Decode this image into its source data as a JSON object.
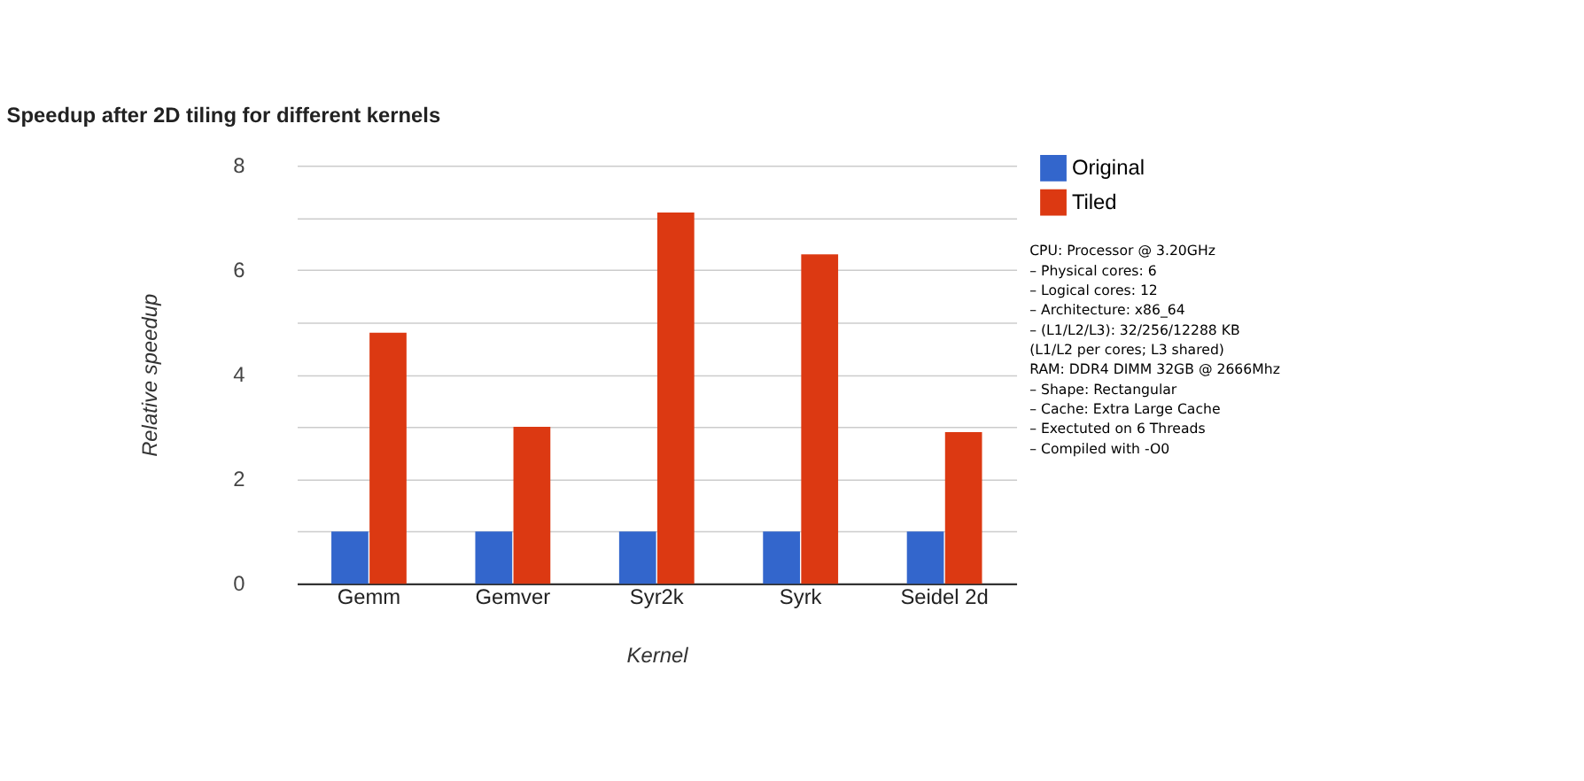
{
  "chart_data": {
    "type": "bar",
    "title": "Speedup after 2D tiling for different kernels",
    "xlabel": "Kernel",
    "ylabel": "Relative speedup",
    "categories": [
      "Gemm",
      "Gemver",
      "Syr2k",
      "Syrk",
      "Seidel 2d"
    ],
    "series": [
      {
        "name": "Original",
        "color": "#3366cc",
        "values": [
          1,
          1,
          1,
          1,
          1
        ]
      },
      {
        "name": "Tiled",
        "color": "#dc3912",
        "values": [
          4.8,
          3.0,
          7.1,
          6.3,
          2.9
        ]
      }
    ],
    "ylim": [
      0,
      8
    ],
    "yticks": [
      0,
      {
        "value": 1,
        "label": null
      },
      2,
      {
        "value": 3,
        "label": null
      },
      4,
      {
        "value": 5,
        "label": null
      },
      6,
      {
        "value": 7,
        "label": null
      },
      8
    ],
    "grid": "y",
    "legend": "top right",
    "annotations": [
      "CPU: Processor @ 3.20GHz",
      "– Physical cores: 6",
      "– Logical cores: 12",
      "– Architecture: x86_64",
      "– (L1/L2/L3): 32/256/12288 KB",
      "(L1/L2 per cores; L3 shared)",
      "RAM: DDR4 DIMM 32GB @ 2666Mhz",
      "–  Shape: Rectangular",
      "–  Cache: Extra Large Cache",
      "–  Exectuted on 6 Threads",
      "–  Compiled with -O0"
    ]
  }
}
